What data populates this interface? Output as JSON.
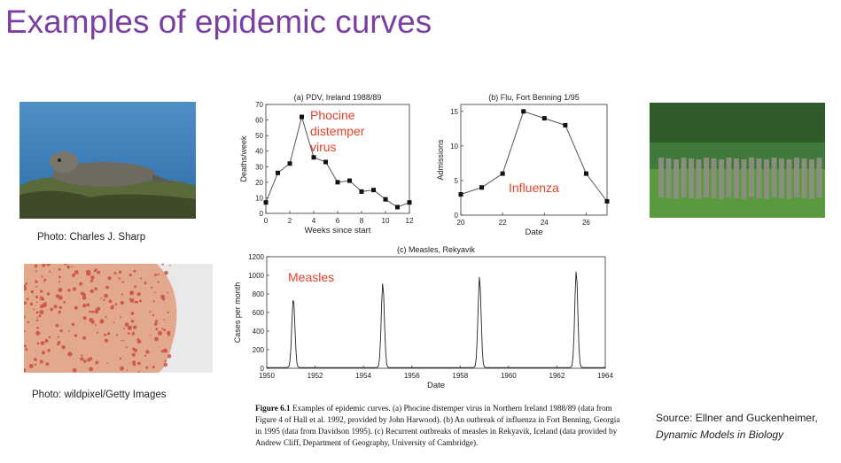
{
  "slide": {
    "title": "Examples of epidemic curves"
  },
  "photos": {
    "seal_caption": "Photo: Charles J. Sharp",
    "measles_caption": "Photo: wildpixel/Getty Images"
  },
  "figure_caption": {
    "label": "Figure 6.1",
    "text": "Examples of epidemic curves. (a) Phocine distemper virus in Northern Ireland 1988/89 (data from Figure 4 of Hall et al. 1992, provided by John Harwood). (b) An outbreak of influenza in Fort Benning, Georgia in 1995 (data from Davidson 1995). (c) Recurrent outbreaks of measles in Rekyavik, Iceland (data provided by Andrew Cliff, Department of Geography, University of Cambridge)."
  },
  "source": {
    "line1": "Source: Ellner and Guckenheimer,",
    "line2": "Dynamic Models in Biology"
  },
  "colors": {
    "title": "#7a3fa3",
    "annotation": "#e8402a",
    "line": "#555555",
    "marker": "#111111"
  },
  "chart_data": [
    {
      "type": "line",
      "title": "(a) PDV, Ireland 1988/89",
      "xlabel": "Weeks since start",
      "ylabel": "Deaths/week",
      "annotation": "Phocine distemper virus",
      "x": [
        0,
        1,
        2,
        3,
        4,
        5,
        6,
        7,
        8,
        9,
        10,
        11,
        12
      ],
      "values": [
        7,
        26,
        32,
        62,
        36,
        33,
        20,
        21,
        14,
        15,
        9,
        4,
        7
      ],
      "xlim": [
        0,
        12
      ],
      "ylim": [
        0,
        70
      ],
      "xticks": [
        0,
        2,
        4,
        6,
        8,
        10,
        12
      ],
      "yticks": [
        0,
        10,
        20,
        30,
        40,
        50,
        60,
        70
      ]
    },
    {
      "type": "line",
      "title": "(b) Flu, Fort Benning 1/95",
      "xlabel": "Date",
      "ylabel": "Admissions",
      "annotation": "Influenza",
      "x": [
        20,
        21,
        22,
        23,
        24,
        25,
        26,
        27
      ],
      "values": [
        3,
        4,
        6,
        15,
        14,
        13,
        6,
        2
      ],
      "xlim": [
        20,
        27
      ],
      "ylim": [
        0,
        16
      ],
      "xticks": [
        20,
        22,
        24,
        26
      ],
      "yticks": [
        0,
        5,
        10,
        15
      ]
    },
    {
      "type": "line",
      "title": "(c) Measles, Rekyavik",
      "xlabel": "Date",
      "ylabel": "Cases per month",
      "annotation": "Measles",
      "xlim": [
        1950,
        1964
      ],
      "ylim": [
        0,
        1200
      ],
      "xticks": [
        1950,
        1952,
        1954,
        1956,
        1958,
        1960,
        1962,
        1964
      ],
      "yticks": [
        0,
        200,
        400,
        600,
        800,
        1000,
        1200
      ],
      "peaks": [
        {
          "year": 1951.1,
          "value": 750
        },
        {
          "year": 1954.8,
          "value": 910
        },
        {
          "year": 1958.8,
          "value": 980
        },
        {
          "year": 1962.8,
          "value": 1040
        }
      ]
    }
  ]
}
